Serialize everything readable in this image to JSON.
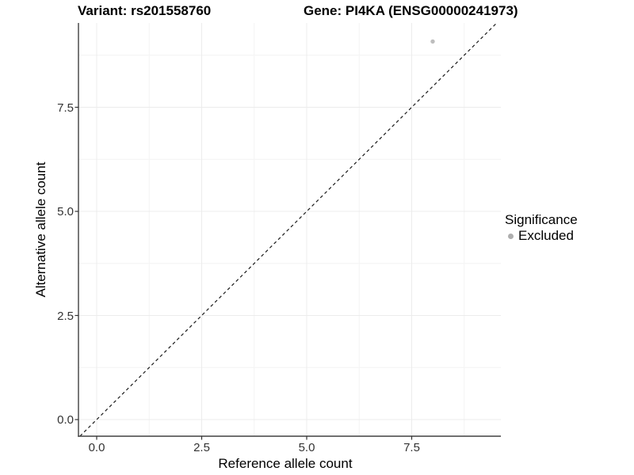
{
  "chart_data": {
    "type": "scatter",
    "title_left": "Variant: rs201558760",
    "title_right": "Gene: PI4KA (ENSG00000241973)",
    "xlabel": "Reference allele count",
    "ylabel": "Alternative allele count",
    "x_ticks": [
      0.0,
      2.5,
      5.0,
      7.5
    ],
    "x_tick_labels": [
      "0.0",
      "2.5",
      "5.0",
      "7.5"
    ],
    "x_minor_ticks": [
      1.25,
      3.75,
      6.25,
      8.75
    ],
    "y_ticks": [
      0.0,
      2.5,
      5.0,
      7.5
    ],
    "y_tick_labels": [
      "0.0",
      "2.5",
      "5.0",
      "7.5"
    ],
    "y_minor_ticks": [
      1.25,
      3.75,
      6.25,
      8.75
    ],
    "xlim": [
      -0.4,
      9.55
    ],
    "ylim": [
      -0.4,
      9.55
    ],
    "grid": {
      "major": true,
      "minor": true
    },
    "points": [
      {
        "x": 8.0,
        "y": 9.08,
        "significance": "Excluded"
      }
    ],
    "point_color": "#bdbdbd",
    "identity_line": {
      "style": "dashed",
      "color": "#1a1a1a",
      "equation": "y = x"
    },
    "legend": {
      "title": "Significance",
      "position": "right",
      "items": [
        {
          "label": "Excluded",
          "color": "#aeaeae"
        }
      ]
    },
    "colors": {
      "axis_line": "#404040",
      "tick_mark": "#333333",
      "tick_label": "#333333",
      "grid_major": "#ececec",
      "grid_minor": "#f4f4f4"
    }
  }
}
